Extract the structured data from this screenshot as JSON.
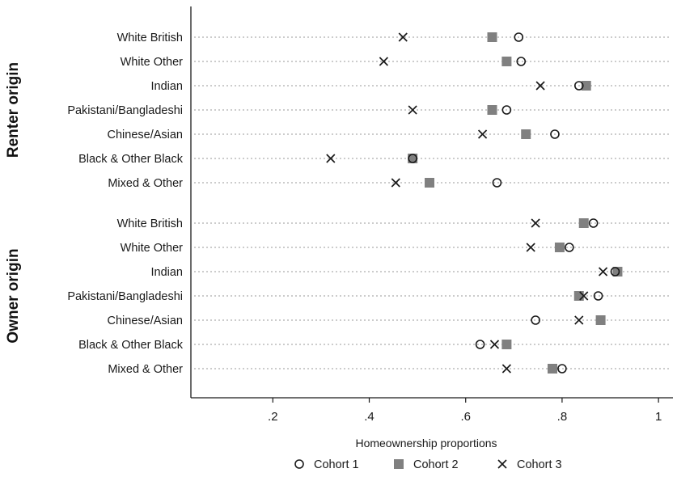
{
  "chart_data": {
    "type": "scatter",
    "subtype": "dot-plot",
    "xlabel": "Homeownership proportions",
    "xlim": [
      0.03,
      1.03
    ],
    "xticks": [
      0.2,
      0.4,
      0.6,
      0.8,
      1.0
    ],
    "xtick_labels": [
      ".2",
      ".4",
      ".6",
      ".8",
      "1"
    ],
    "grid": "horizontal dotted lines at each category",
    "legend_position": "bottom",
    "series": [
      {
        "name": "Cohort 1",
        "marker": "hollow-circle",
        "color": "#1a1a1a"
      },
      {
        "name": "Cohort 2",
        "marker": "filled-square",
        "color": "#808080"
      },
      {
        "name": "Cohort 3",
        "marker": "x",
        "color": "#1a1a1a"
      }
    ],
    "groups": [
      {
        "name": "Renter origin",
        "categories": [
          {
            "label": "White British",
            "values": [
              0.71,
              0.655,
              0.47
            ]
          },
          {
            "label": "White Other",
            "values": [
              0.715,
              0.685,
              0.43
            ]
          },
          {
            "label": "Indian",
            "values": [
              0.835,
              0.85,
              0.755
            ]
          },
          {
            "label": "Pakistani/Bangladeshi",
            "values": [
              0.685,
              0.655,
              0.49
            ]
          },
          {
            "label": "Chinese/Asian",
            "values": [
              0.785,
              0.725,
              0.635
            ]
          },
          {
            "label": "Black & Other Black",
            "values": [
              0.49,
              0.49,
              0.32
            ]
          },
          {
            "label": "Mixed & Other",
            "values": [
              0.665,
              0.525,
              0.455
            ]
          }
        ]
      },
      {
        "name": "Owner origin",
        "categories": [
          {
            "label": "White British",
            "values": [
              0.865,
              0.845,
              0.745
            ]
          },
          {
            "label": "White Other",
            "values": [
              0.815,
              0.795,
              0.735
            ]
          },
          {
            "label": "Indian",
            "values": [
              0.91,
              0.915,
              0.885
            ]
          },
          {
            "label": "Pakistani/Bangladeshi",
            "values": [
              0.875,
              0.835,
              0.845
            ]
          },
          {
            "label": "Chinese/Asian",
            "values": [
              0.745,
              0.88,
              0.835
            ]
          },
          {
            "label": "Black & Other Black",
            "values": [
              0.63,
              0.685,
              0.66
            ]
          },
          {
            "label": "Mixed & Other",
            "values": [
              0.8,
              0.78,
              0.685
            ]
          }
        ]
      }
    ]
  }
}
